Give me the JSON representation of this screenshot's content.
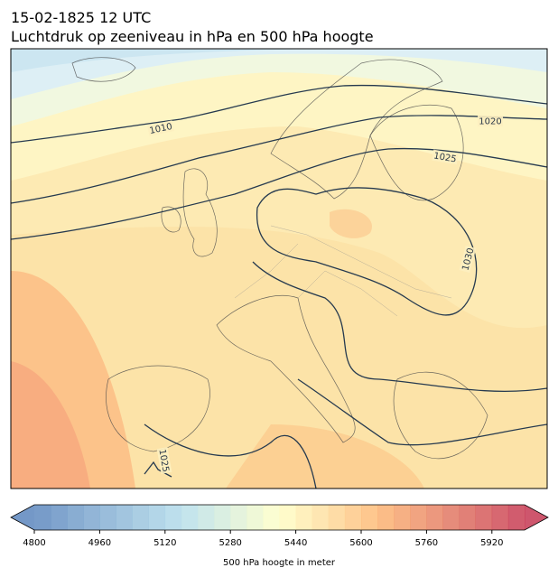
{
  "header": {
    "title_line1": "15-02-1825 12 UTC",
    "title_line2": "Luchtdruk op zeeniveau in hPa en 500 hPa hoogte"
  },
  "map": {
    "contour_labels": [
      "1010",
      "1020",
      "1025",
      "1030",
      "1025"
    ]
  },
  "colorbar": {
    "label": "500 hPa hoogte in meter",
    "range": [
      4800,
      6000
    ],
    "step": 40,
    "ticks": [
      4800,
      4960,
      5120,
      5280,
      5440,
      5600,
      5760,
      5920
    ]
  }
}
